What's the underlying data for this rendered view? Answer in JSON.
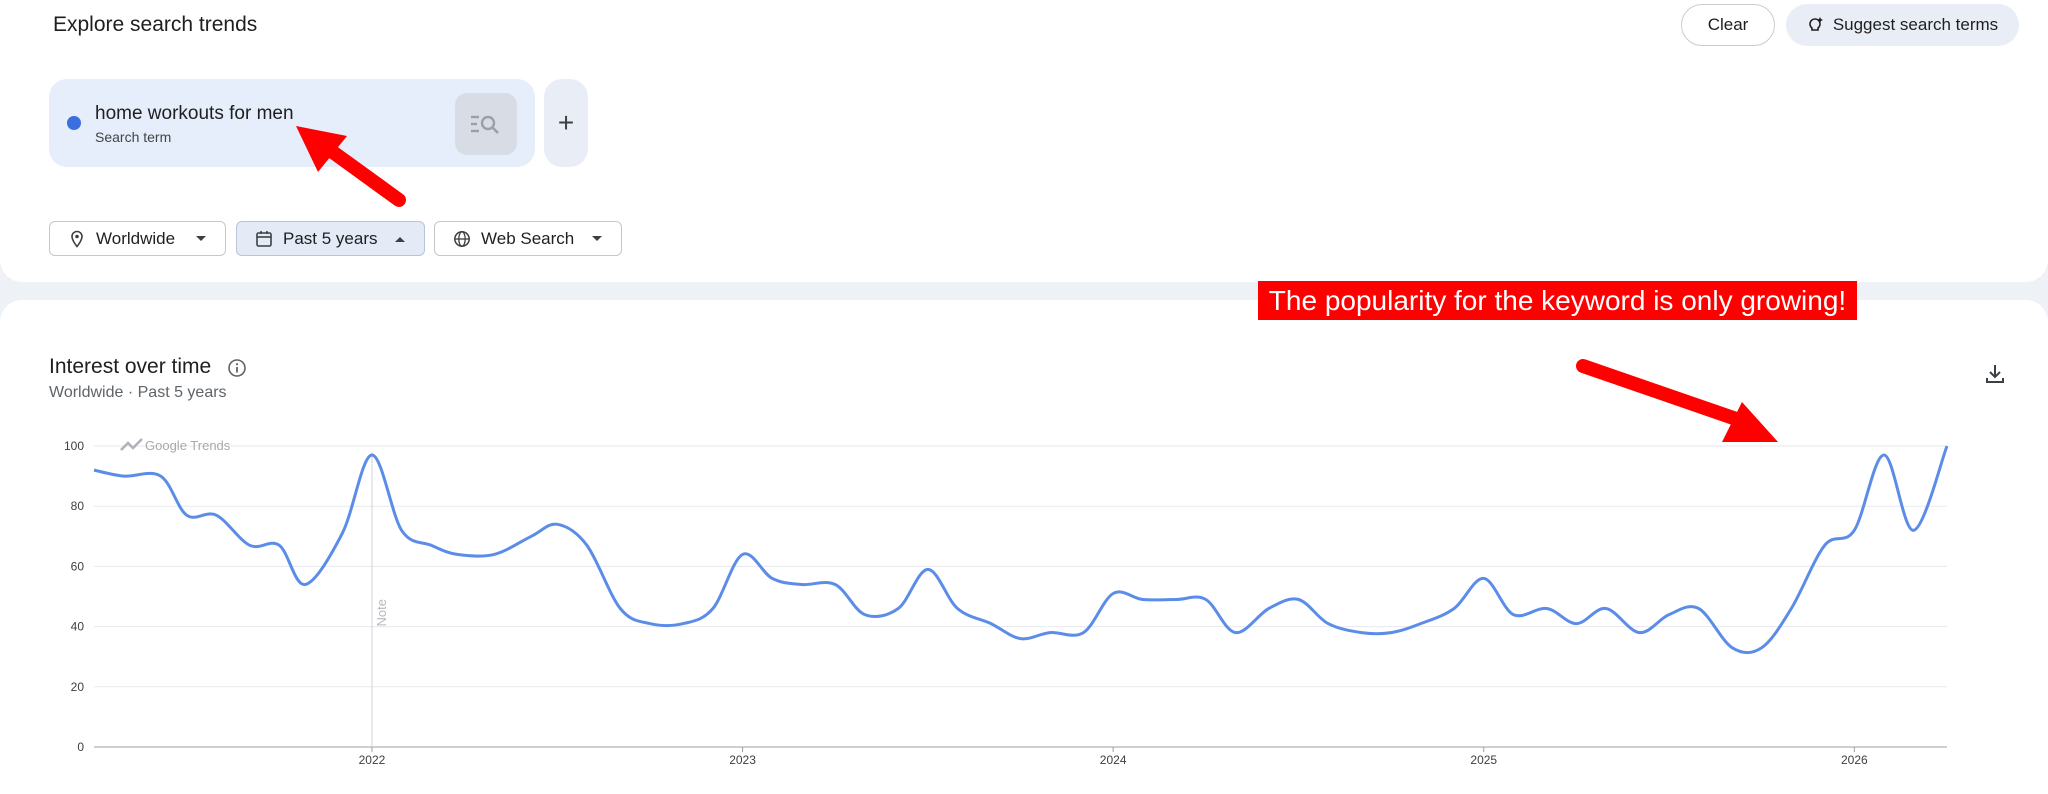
{
  "header": {
    "title": "Explore search trends",
    "clear_label": "Clear",
    "suggest_label": "Suggest search terms"
  },
  "search_term": {
    "name": "home workouts for men",
    "type": "Search term",
    "color": "#3a6fe0"
  },
  "add_button": "+",
  "filters": {
    "location": "Worldwide",
    "time_range": "Past 5 years",
    "search_type": "Web Search"
  },
  "annotation": {
    "text": "The popularity for the keyword is only growing!",
    "color": "#ff0000"
  },
  "chart_panel": {
    "title": "Interest over time",
    "subtitle": "Worldwide · Past 5 years",
    "watermark": "Google Trends",
    "note_label": "Note"
  },
  "icons": {
    "location": "location-pin-icon",
    "time_range": "calendar-icon",
    "search_type": "globe-icon",
    "suggest": "sparkle-bulb-icon",
    "info": "info-icon",
    "download": "download-icon",
    "term_search": "search-list-icon"
  },
  "chart_data": {
    "type": "line",
    "title": "",
    "xlabel": "",
    "ylabel": "",
    "ylim": [
      0,
      100
    ],
    "yticks": [
      0,
      20,
      40,
      60,
      80,
      100
    ],
    "xticks": [
      {
        "t": 2022.0,
        "label": "2022"
      },
      {
        "t": 2023.0,
        "label": "2023"
      },
      {
        "t": 2024.0,
        "label": "2024"
      },
      {
        "t": 2025.0,
        "label": "2025"
      },
      {
        "t": 2026.0,
        "label": "2026"
      }
    ],
    "xlim": [
      2021.25,
      2026.25
    ],
    "grid": true,
    "line_color": "#5b8de8",
    "note_at": 2022.0,
    "series": [
      {
        "points": [
          [
            2021.25,
            92
          ],
          [
            2021.33,
            90
          ],
          [
            2021.43,
            90
          ],
          [
            2021.5,
            77
          ],
          [
            2021.58,
            77
          ],
          [
            2021.67,
            67
          ],
          [
            2021.75,
            67
          ],
          [
            2021.82,
            54
          ],
          [
            2021.92,
            71
          ],
          [
            2022.0,
            97
          ],
          [
            2022.08,
            72
          ],
          [
            2022.16,
            67
          ],
          [
            2022.23,
            64
          ],
          [
            2022.33,
            64
          ],
          [
            2022.43,
            70
          ],
          [
            2022.5,
            74
          ],
          [
            2022.58,
            67
          ],
          [
            2022.67,
            46
          ],
          [
            2022.75,
            41
          ],
          [
            2022.84,
            41
          ],
          [
            2022.92,
            46
          ],
          [
            2023.0,
            64
          ],
          [
            2023.08,
            56
          ],
          [
            2023.16,
            54
          ],
          [
            2023.25,
            54
          ],
          [
            2023.33,
            44
          ],
          [
            2023.42,
            46
          ],
          [
            2023.5,
            59
          ],
          [
            2023.58,
            46
          ],
          [
            2023.67,
            41
          ],
          [
            2023.75,
            36
          ],
          [
            2023.83,
            38
          ],
          [
            2023.92,
            38
          ],
          [
            2024.0,
            51
          ],
          [
            2024.08,
            49
          ],
          [
            2024.17,
            49
          ],
          [
            2024.25,
            49
          ],
          [
            2024.33,
            38
          ],
          [
            2024.42,
            46
          ],
          [
            2024.5,
            49
          ],
          [
            2024.58,
            41
          ],
          [
            2024.67,
            38
          ],
          [
            2024.75,
            38
          ],
          [
            2024.83,
            41
          ],
          [
            2024.92,
            46
          ],
          [
            2025.0,
            56
          ],
          [
            2025.08,
            44
          ],
          [
            2025.17,
            46
          ],
          [
            2025.25,
            41
          ],
          [
            2025.33,
            46
          ],
          [
            2025.42,
            38
          ],
          [
            2025.5,
            44
          ],
          [
            2025.58,
            46
          ],
          [
            2025.67,
            33
          ],
          [
            2025.75,
            33
          ],
          [
            2025.83,
            46
          ],
          [
            2025.92,
            67
          ],
          [
            2026.0,
            72
          ],
          [
            2026.08,
            97
          ],
          [
            2026.16,
            72
          ],
          [
            2026.25,
            100
          ]
        ]
      }
    ]
  }
}
